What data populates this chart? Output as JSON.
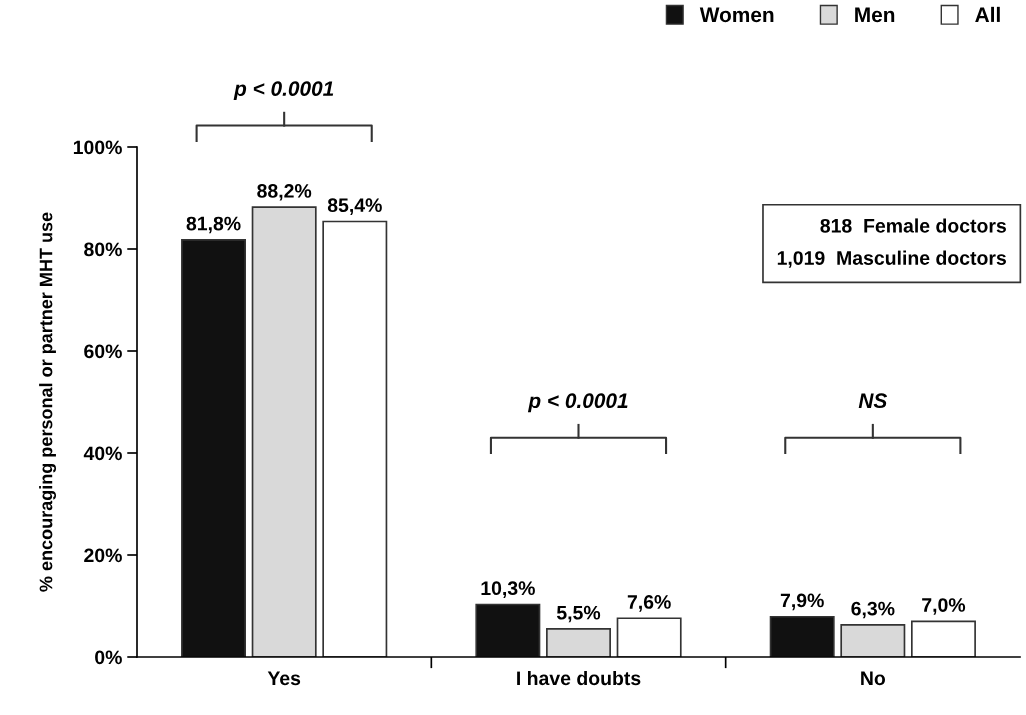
{
  "chart_data": {
    "type": "bar",
    "ylabel": "% encouraging personal or partner MHT use",
    "categories": [
      "Yes",
      "I have doubts",
      "No"
    ],
    "series": [
      {
        "name": "Women",
        "color": "#111111",
        "values": [
          81.8,
          10.3,
          7.9
        ],
        "value_labels": [
          "81,8%",
          "10,3%",
          "7,9%"
        ]
      },
      {
        "name": "Men",
        "color": "#d9d9d9",
        "values": [
          88.2,
          5.5,
          6.3
        ],
        "value_labels": [
          "88,2%",
          "5,5%",
          "6,3%"
        ]
      },
      {
        "name": "All",
        "color": "#ffffff",
        "values": [
          85.4,
          7.6,
          7.0
        ],
        "value_labels": [
          "85,4%",
          "7,6%",
          "7,0%"
        ]
      }
    ],
    "ylim": [
      0,
      100
    ],
    "yticks": [
      {
        "value": 0,
        "label": "0%"
      },
      {
        "value": 20,
        "label": "20%"
      },
      {
        "value": 40,
        "label": "40%"
      },
      {
        "value": 60,
        "label": "60%"
      },
      {
        "value": 80,
        "label": "80%"
      },
      {
        "value": 100,
        "label": "100%"
      }
    ],
    "legend": "top right",
    "grid": false,
    "annotations": [
      "p < 0.0001",
      "p < 0.0001",
      "NS",
      "818  Female doctors\n1,019  Masculine doctors"
    ]
  }
}
